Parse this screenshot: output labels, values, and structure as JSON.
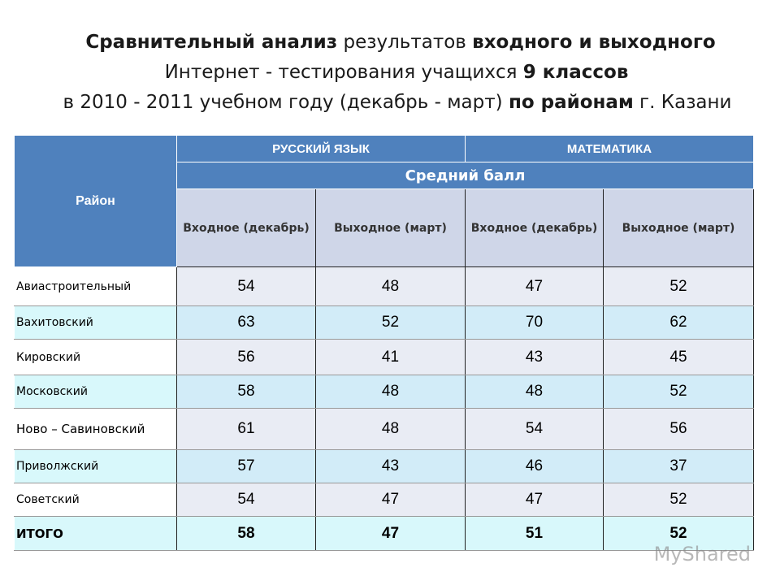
{
  "title": {
    "line1_bold_a": "Сравнительный анализ",
    "line1_norm": " результатов ",
    "line1_bold_b": "входного и выходного",
    "line2_a": "Интернет - тестирования  учащихся ",
    "line2_bold": "9 классов",
    "line3_a": "в 2010  - 2011 учебном году (декабрь - март) ",
    "line3_bold": "по районам",
    "line3_b": " г. Казани"
  },
  "table": {
    "col_rayon": "Район",
    "col_russian": "РУССКИЙ ЯЗЫК",
    "col_math": "МАТЕМАТИКА",
    "avg_score": "Средний балл",
    "sub_headers": [
      "Входное (декабрь)",
      "Выходное (март)",
      "Входное (декабрь)",
      "Выходное (март)"
    ],
    "rows": [
      {
        "name": "Авиастроительный",
        "values": [
          "54",
          "48",
          "47",
          "52"
        ]
      },
      {
        "name": "Вахитовский",
        "values": [
          "63",
          "52",
          "70",
          "62"
        ]
      },
      {
        "name": "Кировский",
        "values": [
          "56",
          "41",
          "43",
          "45"
        ]
      },
      {
        "name": "Московский",
        "values": [
          "58",
          "48",
          "48",
          "52"
        ]
      },
      {
        "name": "Ново – Савиновский",
        "values": [
          "61",
          "48",
          "54",
          "56"
        ]
      },
      {
        "name": "Приволжский",
        "values": [
          "57",
          "43",
          "46",
          "37"
        ]
      },
      {
        "name": "Советский",
        "values": [
          "54",
          "47",
          "47",
          "52"
        ]
      },
      {
        "name": "ИТОГО",
        "values": [
          "58",
          "47",
          "51",
          "52"
        ]
      }
    ]
  },
  "watermark": "MyShared"
}
